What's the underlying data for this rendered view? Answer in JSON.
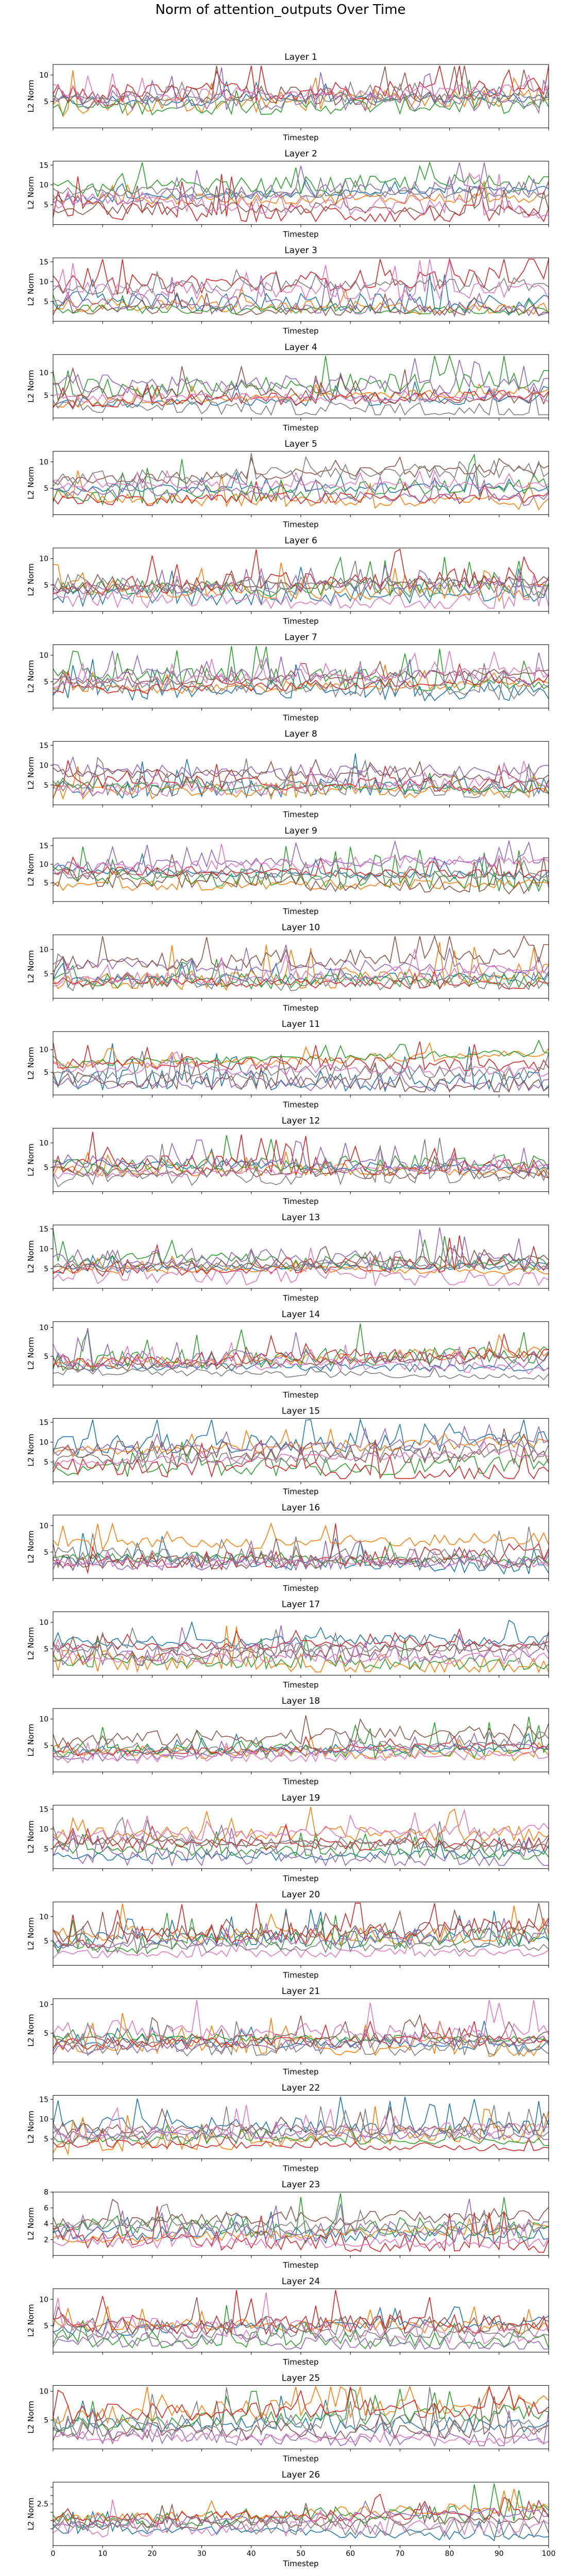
{
  "figure_title": "Norm of attention_outputs Over Time",
  "colors": [
    "#1f77b4",
    "#ff7f0e",
    "#2ca02c",
    "#d62728",
    "#9467bd",
    "#8c564b",
    "#e377c2",
    "#7f7f7f"
  ],
  "chart_data": {
    "type": "line",
    "title": "Norm of attention_outputs Over Time",
    "x_axis": {
      "label": "Timestep",
      "range": [
        0,
        100
      ],
      "ticks": [
        0,
        10,
        20,
        30,
        40,
        50,
        60,
        70,
        80,
        90,
        100
      ]
    },
    "ylabel": "L2 Norm",
    "series_count": 8,
    "grid": false,
    "legend": "none",
    "panels": [
      {
        "title": "Layer 1",
        "ylim": [
          0,
          12
        ],
        "yticks": [
          5,
          10
        ]
      },
      {
        "title": "Layer 2",
        "ylim": [
          0,
          16
        ],
        "yticks": [
          5,
          10,
          15
        ]
      },
      {
        "title": "Layer 3",
        "ylim": [
          0,
          16
        ],
        "yticks": [
          5,
          10,
          15
        ]
      },
      {
        "title": "Layer 4",
        "ylim": [
          0,
          14
        ],
        "yticks": [
          5,
          10
        ]
      },
      {
        "title": "Layer 5",
        "ylim": [
          0,
          12
        ],
        "yticks": [
          5,
          10
        ]
      },
      {
        "title": "Layer 6",
        "ylim": [
          0,
          12
        ],
        "yticks": [
          5,
          10
        ]
      },
      {
        "title": "Layer 7",
        "ylim": [
          0,
          12
        ],
        "yticks": [
          5,
          10
        ]
      },
      {
        "title": "Layer 8",
        "ylim": [
          0,
          16
        ],
        "yticks": [
          5,
          10,
          15
        ]
      },
      {
        "title": "Layer 9",
        "ylim": [
          0,
          17
        ],
        "yticks": [
          5,
          10,
          15
        ]
      },
      {
        "title": "Layer 10",
        "ylim": [
          0,
          13
        ],
        "yticks": [
          5,
          10
        ]
      },
      {
        "title": "Layer 11",
        "ylim": [
          0,
          14
        ],
        "yticks": [
          5,
          10
        ]
      },
      {
        "title": "Layer 12",
        "ylim": [
          0,
          13
        ],
        "yticks": [
          5,
          10
        ]
      },
      {
        "title": "Layer 13",
        "ylim": [
          0,
          16
        ],
        "yticks": [
          5,
          10,
          15
        ]
      },
      {
        "title": "Layer 14",
        "ylim": [
          0,
          11
        ],
        "yticks": [
          5,
          10
        ]
      },
      {
        "title": "Layer 15",
        "ylim": [
          0,
          16
        ],
        "yticks": [
          5,
          10,
          15
        ]
      },
      {
        "title": "Layer 16",
        "ylim": [
          0,
          12
        ],
        "yticks": [
          5,
          10
        ]
      },
      {
        "title": "Layer 17",
        "ylim": [
          0,
          12
        ],
        "yticks": [
          5,
          10
        ]
      },
      {
        "title": "Layer 18",
        "ylim": [
          0,
          12
        ],
        "yticks": [
          5,
          10
        ]
      },
      {
        "title": "Layer 19",
        "ylim": [
          0,
          16
        ],
        "yticks": [
          5,
          10,
          15
        ]
      },
      {
        "title": "Layer 20",
        "ylim": [
          0,
          13
        ],
        "yticks": [
          5,
          10
        ]
      },
      {
        "title": "Layer 21",
        "ylim": [
          0,
          11
        ],
        "yticks": [
          5,
          10
        ]
      },
      {
        "title": "Layer 22",
        "ylim": [
          0,
          16
        ],
        "yticks": [
          5,
          10,
          15
        ]
      },
      {
        "title": "Layer 23",
        "ylim": [
          0,
          8
        ],
        "yticks": [
          2,
          4,
          6,
          8
        ]
      },
      {
        "title": "Layer 24",
        "ylim": [
          0,
          12
        ],
        "yticks": [
          5,
          10
        ]
      },
      {
        "title": "Layer 25",
        "ylim": [
          0,
          11
        ],
        "yticks": [
          5,
          10
        ]
      },
      {
        "title": "Layer 26",
        "ylim": [
          0,
          3.8
        ],
        "yticks": [
          1,
          1.5,
          2,
          2.5,
          3,
          3.5
        ],
        "ytick_labels": [
          "",
          "",
          "",
          "2.5",
          "",
          ""
        ]
      }
    ]
  }
}
